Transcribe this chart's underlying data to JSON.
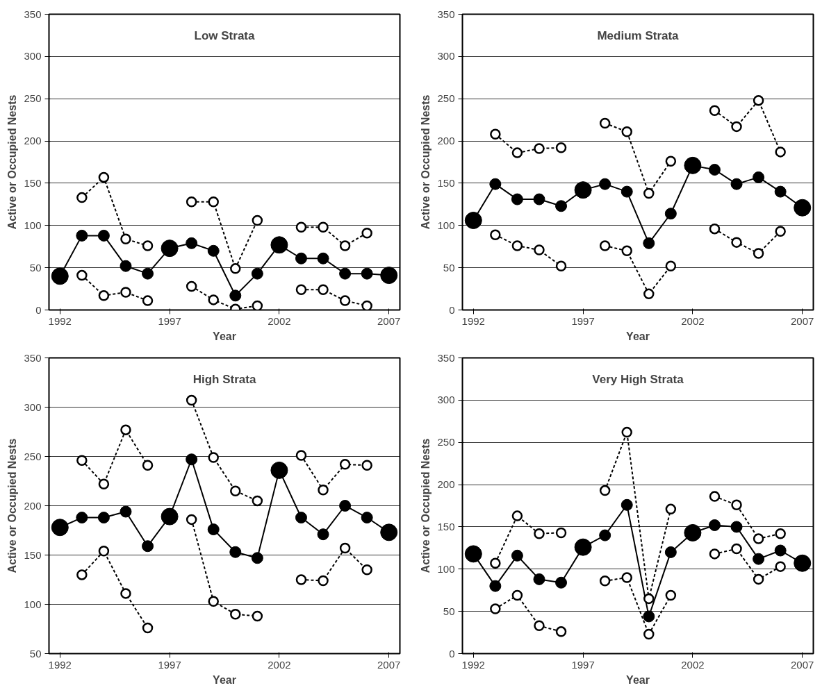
{
  "chart_data": [
    {
      "type": "line",
      "title": "Low Strata",
      "xlabel": "Year",
      "ylabel": "Active or Occupied Nests",
      "x": [
        1992,
        1993,
        1994,
        1995,
        1996,
        1997,
        1998,
        1999,
        2000,
        2001,
        2002,
        2003,
        2004,
        2005,
        2006,
        2007
      ],
      "xlim": [
        1991.5,
        2007.5
      ],
      "xticks": [
        1992,
        1997,
        2002,
        2007
      ],
      "ylim": [
        0,
        350
      ],
      "yticks": [
        0,
        50,
        100,
        150,
        200,
        250,
        300,
        350
      ],
      "grid": "y",
      "series": [
        {
          "color": "#000000",
          "line_style": "solid",
          "marker": "none",
          "values": [
            40,
            88,
            88,
            52,
            43,
            73,
            79,
            70,
            17,
            43,
            77,
            61,
            61,
            43,
            43,
            41
          ]
        },
        {
          "type": "scatter",
          "color": "#000000",
          "marker": "circle",
          "x": [
            1993,
            1994,
            1995,
            1996,
            1998,
            1999,
            2000,
            2001,
            2003,
            2004,
            2005,
            2006
          ],
          "values": [
            88,
            88,
            52,
            43,
            79,
            70,
            17,
            43,
            61,
            61,
            43,
            43
          ]
        },
        {
          "type": "bubble",
          "color": "#000000",
          "x": [
            1992,
            1997,
            2002,
            2007
          ],
          "values": [
            40,
            73,
            77,
            41
          ],
          "sizes": [
            1,
            1,
            1,
            1
          ]
        },
        {
          "type": "line",
          "color": "#000000",
          "line_style": "dashed",
          "marker": "circle",
          "values": [
            null,
            133,
            157,
            84,
            76,
            null,
            128,
            128,
            49,
            106,
            null,
            98,
            98,
            76,
            91,
            null
          ]
        },
        {
          "type": "line",
          "color": "#000000",
          "line_style": "dashed",
          "marker": "circle",
          "values": [
            null,
            41,
            17,
            21,
            11,
            null,
            28,
            12,
            1,
            5,
            null,
            24,
            24,
            11,
            5,
            null
          ]
        }
      ]
    },
    {
      "type": "line",
      "title": "Medium Strata",
      "xlabel": "Year",
      "ylabel": "Active or Occupied Nests",
      "x": [
        1992,
        1993,
        1994,
        1995,
        1996,
        1997,
        1998,
        1999,
        2000,
        2001,
        2002,
        2003,
        2004,
        2005,
        2006,
        2007
      ],
      "xlim": [
        1991.5,
        2007.5
      ],
      "xticks": [
        1992,
        1997,
        2002,
        2007
      ],
      "ylim": [
        0,
        350
      ],
      "yticks": [
        0,
        50,
        100,
        150,
        200,
        250,
        300,
        350
      ],
      "grid": "y",
      "series": [
        {
          "color": "#000000",
          "line_style": "solid",
          "marker": "none",
          "values": [
            106,
            149,
            131,
            131,
            123,
            142,
            149,
            140,
            79,
            114,
            171,
            166,
            149,
            157,
            140,
            121
          ]
        },
        {
          "type": "scatter",
          "color": "#000000",
          "marker": "circle",
          "x": [
            1993,
            1994,
            1995,
            1996,
            1998,
            1999,
            2000,
            2001,
            2003,
            2004,
            2005,
            2006
          ],
          "values": [
            149,
            131,
            131,
            123,
            149,
            140,
            79,
            114,
            166,
            149,
            157,
            140
          ]
        },
        {
          "type": "bubble",
          "color": "#000000",
          "x": [
            1992,
            1997,
            2002,
            2007
          ],
          "values": [
            106,
            142,
            171,
            121
          ],
          "sizes": [
            1,
            1,
            1,
            1
          ]
        },
        {
          "type": "line",
          "color": "#000000",
          "line_style": "dashed",
          "marker": "circle",
          "values": [
            null,
            208,
            186,
            191,
            192,
            null,
            221,
            211,
            138,
            176,
            null,
            236,
            217,
            248,
            187,
            null
          ]
        },
        {
          "type": "line",
          "color": "#000000",
          "line_style": "dashed",
          "marker": "circle",
          "values": [
            null,
            89,
            76,
            71,
            52,
            null,
            76,
            70,
            19,
            52,
            null,
            96,
            80,
            67,
            93,
            null
          ]
        }
      ]
    },
    {
      "type": "line",
      "title": "High Strata",
      "xlabel": "Year",
      "ylabel": "Active or Occupied Nests",
      "x": [
        1992,
        1993,
        1994,
        1995,
        1996,
        1997,
        1998,
        1999,
        2000,
        2001,
        2002,
        2003,
        2004,
        2005,
        2006,
        2007
      ],
      "xlim": [
        1991.5,
        2007.5
      ],
      "xticks": [
        1992,
        1997,
        2002,
        2007
      ],
      "ylim": [
        50,
        350
      ],
      "yticks": [
        50,
        100,
        150,
        200,
        250,
        300,
        350
      ],
      "grid": "y",
      "series": [
        {
          "color": "#000000",
          "line_style": "solid",
          "marker": "none",
          "values": [
            178,
            188,
            188,
            194,
            159,
            189,
            247,
            176,
            153,
            147,
            236,
            188,
            171,
            200,
            188,
            173
          ]
        },
        {
          "type": "scatter",
          "color": "#000000",
          "marker": "circle",
          "x": [
            1993,
            1994,
            1995,
            1996,
            1998,
            1999,
            2000,
            2001,
            2003,
            2004,
            2005,
            2006
          ],
          "values": [
            188,
            188,
            194,
            159,
            247,
            176,
            153,
            147,
            188,
            171,
            200,
            188
          ]
        },
        {
          "type": "bubble",
          "color": "#000000",
          "x": [
            1992,
            1997,
            2002,
            2007
          ],
          "values": [
            178,
            189,
            236,
            173
          ],
          "sizes": [
            1,
            1,
            1,
            1
          ]
        },
        {
          "type": "line",
          "color": "#000000",
          "line_style": "dashed",
          "marker": "circle",
          "values": [
            null,
            246,
            222,
            277,
            241,
            null,
            307,
            249,
            215,
            205,
            null,
            251,
            216,
            242,
            241,
            null
          ]
        },
        {
          "type": "line",
          "color": "#000000",
          "line_style": "dashed",
          "marker": "circle",
          "values": [
            null,
            130,
            154,
            111,
            76,
            null,
            186,
            103,
            90,
            88,
            null,
            125,
            124,
            157,
            135,
            null
          ]
        }
      ]
    },
    {
      "type": "line",
      "title": "Very High Strata",
      "xlabel": "Year",
      "ylabel": "Active or Occupied Nests",
      "x": [
        1992,
        1993,
        1994,
        1995,
        1996,
        1997,
        1998,
        1999,
        2000,
        2001,
        2002,
        2003,
        2004,
        2005,
        2006,
        2007
      ],
      "xlim": [
        1991.5,
        2007.5
      ],
      "xticks": [
        1992,
        1997,
        2002,
        2007
      ],
      "ylim": [
        0,
        350
      ],
      "yticks": [
        0,
        50,
        100,
        150,
        200,
        250,
        300,
        350
      ],
      "grid": "y",
      "series": [
        {
          "color": "#000000",
          "line_style": "solid",
          "marker": "none",
          "values": [
            118,
            80,
            116,
            88,
            84,
            126,
            140,
            176,
            44,
            120,
            143,
            152,
            150,
            112,
            122,
            107
          ]
        },
        {
          "type": "scatter",
          "color": "#000000",
          "marker": "circle",
          "x": [
            1993,
            1994,
            1995,
            1996,
            1998,
            1999,
            2000,
            2001,
            2003,
            2004,
            2005,
            2006
          ],
          "values": [
            80,
            116,
            88,
            84,
            140,
            176,
            44,
            120,
            152,
            150,
            112,
            122
          ]
        },
        {
          "type": "bubble",
          "color": "#000000",
          "x": [
            1992,
            1997,
            2002,
            2007
          ],
          "values": [
            118,
            126,
            143,
            107
          ],
          "sizes": [
            1,
            1,
            1,
            1
          ]
        },
        {
          "type": "line",
          "color": "#000000",
          "line_style": "dashed",
          "marker": "circle",
          "values": [
            null,
            107,
            163,
            142,
            143,
            null,
            193,
            262,
            65,
            171,
            null,
            186,
            176,
            136,
            142,
            null
          ]
        },
        {
          "type": "line",
          "color": "#000000",
          "line_style": "dashed",
          "marker": "circle",
          "values": [
            null,
            53,
            69,
            33,
            26,
            null,
            86,
            90,
            23,
            69,
            null,
            118,
            124,
            88,
            103,
            null
          ]
        }
      ]
    }
  ]
}
